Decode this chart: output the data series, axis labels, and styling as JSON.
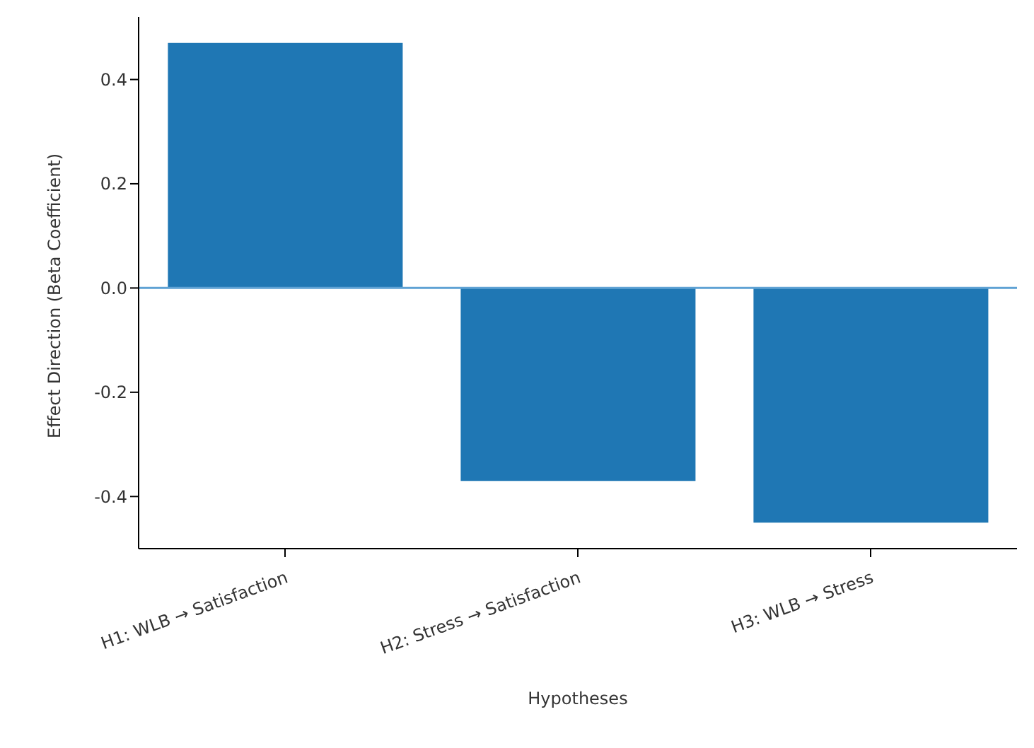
{
  "chart_data": {
    "type": "bar",
    "xlabel": "Hypotheses",
    "ylabel": "Effect Direction (Beta Coefficient)",
    "categories": [
      "H1: WLB → Satisfaction",
      "H2: Stress → Satisfaction",
      "H3: WLB → Stress"
    ],
    "values": [
      0.47,
      -0.37,
      -0.45
    ],
    "color": "#1f77b4",
    "ylim": [
      -0.5,
      0.52
    ],
    "yticks": [
      {
        "value": -0.4,
        "label": "-0.4"
      },
      {
        "value": -0.2,
        "label": "-0.2"
      },
      {
        "value": 0,
        "label": "0.0"
      },
      {
        "value": 0.2,
        "label": "0.2"
      },
      {
        "value": 0.4,
        "label": "0.4"
      }
    ],
    "ref_lines": [
      {
        "axis": "y",
        "value": 0,
        "color": "#5fa2d4"
      }
    ],
    "grid": false,
    "legend": false
  }
}
